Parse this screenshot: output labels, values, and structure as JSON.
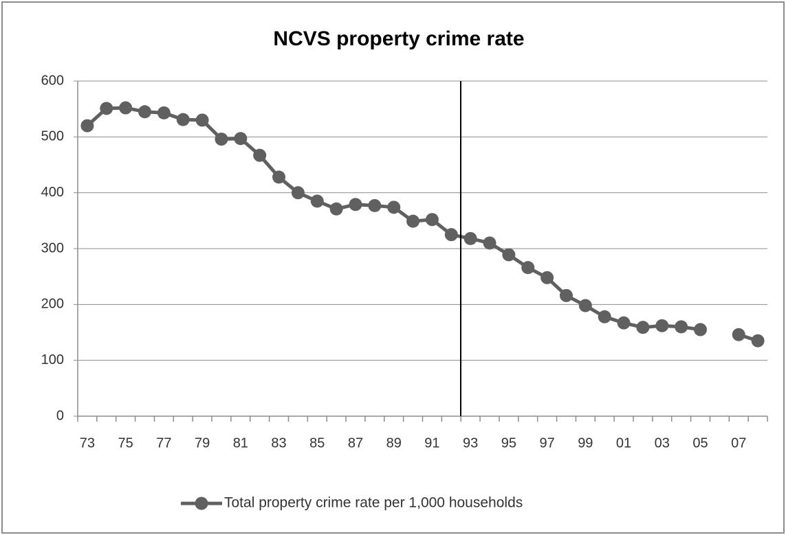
{
  "chart_data": {
    "type": "line",
    "title": "NCVS property crime rate",
    "categories": [
      "73",
      null,
      "75",
      null,
      "77",
      null,
      "79",
      null,
      "81",
      null,
      "83",
      null,
      "85",
      null,
      "87",
      null,
      "89",
      null,
      "91",
      null,
      "93",
      null,
      "95",
      null,
      "97",
      null,
      "99",
      null,
      "01",
      null,
      "03",
      null,
      "05",
      null,
      "07",
      null
    ],
    "series": [
      {
        "name": "Total property crime rate per 1,000 households",
        "color": "#606060",
        "values": [
          520,
          551,
          552,
          545,
          543,
          531,
          530,
          496,
          497,
          467,
          428,
          400,
          385,
          371,
          379,
          377,
          374,
          349,
          352,
          325,
          318,
          310,
          289,
          266,
          248,
          216,
          198,
          178,
          167,
          159,
          162,
          160,
          155,
          null,
          146,
          135
        ]
      }
    ],
    "ylim": [
      0,
      600
    ],
    "yticks": [
      0,
      100,
      200,
      300,
      400,
      500,
      600
    ],
    "grid": true,
    "legend": "bottom"
  }
}
